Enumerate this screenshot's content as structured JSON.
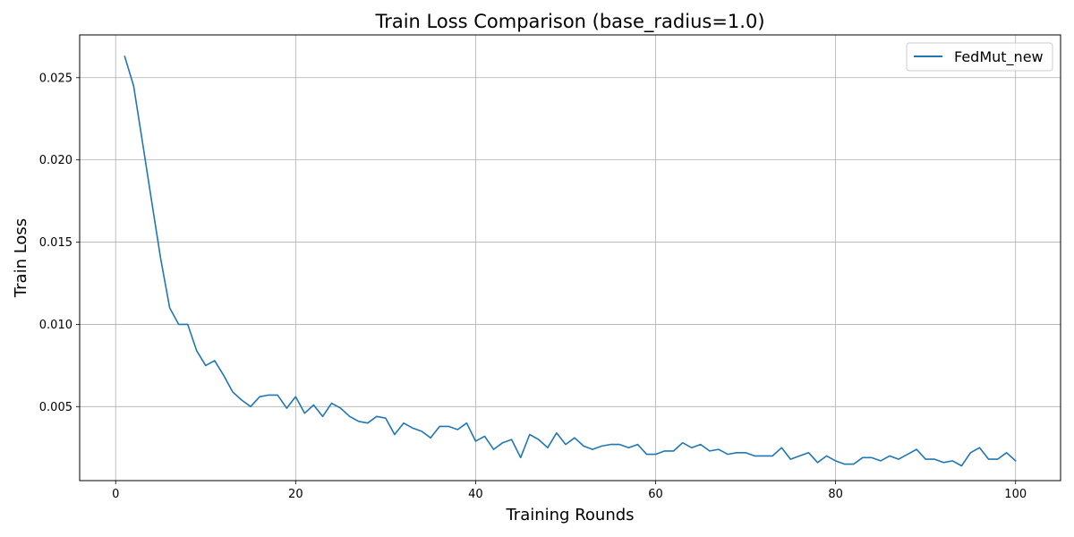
{
  "chart_data": {
    "type": "line",
    "title": "Train Loss Comparison (base_radius=1.0)",
    "xlabel": "Training Rounds",
    "ylabel": "Train Loss",
    "xlim": [
      -4,
      105
    ],
    "ylim": [
      0.0005,
      0.0276
    ],
    "xticks": [
      0,
      20,
      40,
      60,
      80,
      100
    ],
    "yticks": [
      0.005,
      0.01,
      0.015,
      0.02,
      0.025
    ],
    "ytick_labels": [
      "0.005",
      "0.010",
      "0.015",
      "0.020",
      "0.025"
    ],
    "grid": true,
    "legend_position": "top-right",
    "series": [
      {
        "name": "FedMut_new",
        "color": "#1f77b4",
        "x": [
          1,
          2,
          3,
          4,
          5,
          6,
          7,
          8,
          9,
          10,
          11,
          12,
          13,
          14,
          15,
          16,
          17,
          18,
          19,
          20,
          21,
          22,
          23,
          24,
          25,
          26,
          27,
          28,
          29,
          30,
          31,
          32,
          33,
          34,
          35,
          36,
          37,
          38,
          39,
          40,
          41,
          42,
          43,
          44,
          45,
          46,
          47,
          48,
          49,
          50,
          51,
          52,
          53,
          54,
          55,
          56,
          57,
          58,
          59,
          60,
          61,
          62,
          63,
          64,
          65,
          66,
          67,
          68,
          69,
          70,
          71,
          72,
          73,
          74,
          75,
          76,
          77,
          78,
          79,
          80,
          81,
          82,
          83,
          84,
          85,
          86,
          87,
          88,
          89,
          90,
          91,
          92,
          93,
          94,
          95,
          96,
          97,
          98,
          99,
          100
        ],
        "values": [
          0.0263,
          0.0245,
          0.021,
          0.0175,
          0.014,
          0.011,
          0.01,
          0.01,
          0.0084,
          0.0075,
          0.0078,
          0.0069,
          0.0059,
          0.0054,
          0.005,
          0.0056,
          0.0057,
          0.0057,
          0.0049,
          0.0056,
          0.0046,
          0.0051,
          0.0044,
          0.0052,
          0.0049,
          0.0044,
          0.0041,
          0.004,
          0.0044,
          0.0043,
          0.0033,
          0.004,
          0.0037,
          0.0035,
          0.0031,
          0.0038,
          0.0038,
          0.0036,
          0.004,
          0.0029,
          0.0032,
          0.0024,
          0.0028,
          0.003,
          0.0019,
          0.0033,
          0.003,
          0.0025,
          0.0034,
          0.0027,
          0.0031,
          0.0026,
          0.0024,
          0.0026,
          0.0027,
          0.0027,
          0.0025,
          0.0027,
          0.0021,
          0.0021,
          0.0023,
          0.0023,
          0.0028,
          0.0025,
          0.0027,
          0.0023,
          0.0024,
          0.0021,
          0.0022,
          0.0022,
          0.002,
          0.002,
          0.002,
          0.0025,
          0.0018,
          0.002,
          0.0022,
          0.0016,
          0.002,
          0.0017,
          0.0015,
          0.0015,
          0.0019,
          0.0019,
          0.0017,
          0.002,
          0.0018,
          0.0021,
          0.0024,
          0.0018,
          0.0018,
          0.0016,
          0.0017,
          0.0014,
          0.0022,
          0.0025,
          0.0018,
          0.0018,
          0.0022,
          0.0017
        ]
      }
    ]
  }
}
